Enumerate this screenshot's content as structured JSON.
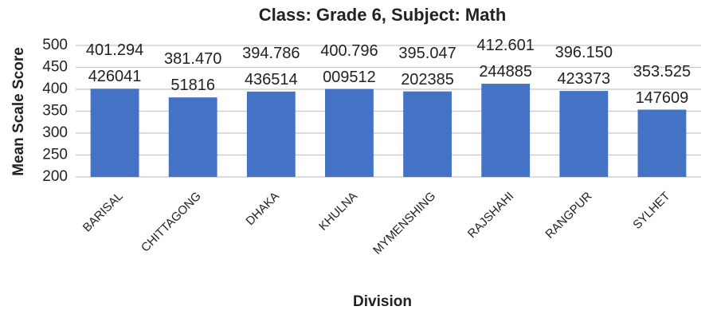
{
  "chart_data": {
    "type": "bar",
    "title": "Class: Grade 6, Subject: Math",
    "x_label": "Division",
    "y_label": "Mean Scale Score",
    "categories": [
      "BARISAL",
      "CHITTAGONG",
      "DHAKA",
      "KHULNA",
      "MYMENSHING",
      "RAJSHAHI",
      "RANGPUR",
      "SYLHET"
    ],
    "values": [
      401.294426041,
      381.47051816,
      394.786436514,
      400.796009512,
      395.047202385,
      412.601244885,
      396.150423373,
      353.525147609
    ],
    "color": "#4472c4",
    "ylim": [
      200,
      500
    ],
    "yticks": [
      200,
      250,
      300,
      350,
      400,
      450,
      500
    ],
    "grid": true
  }
}
